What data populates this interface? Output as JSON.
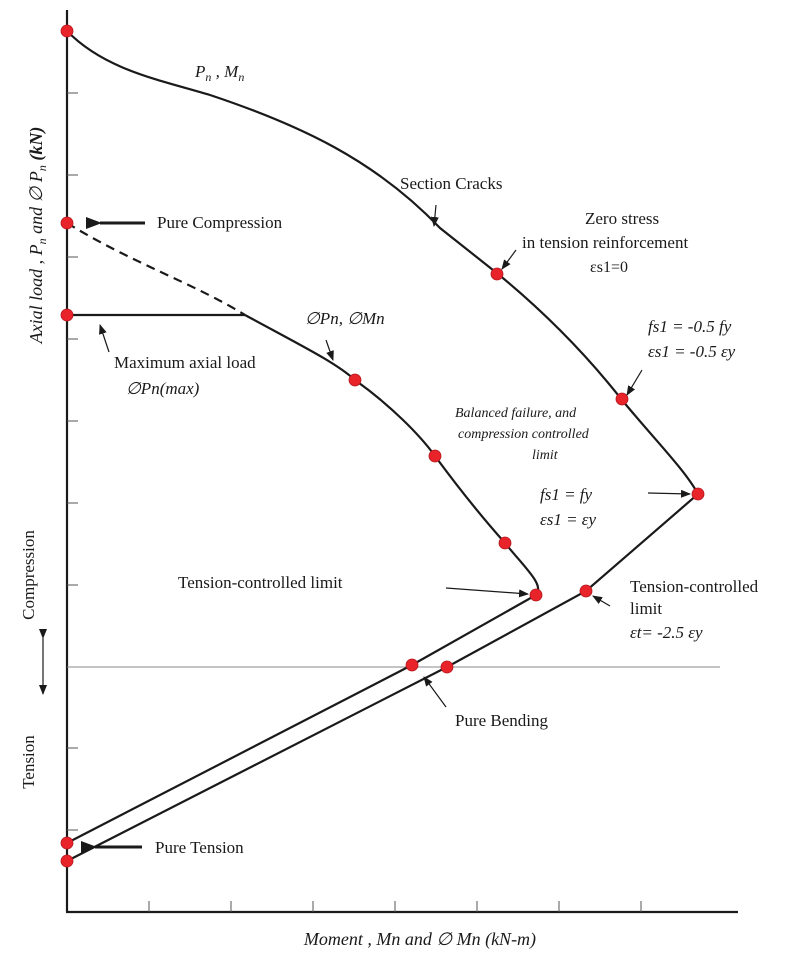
{
  "x_axis_title": "Moment , Mn and ∅ Mn  (kN-m)",
  "y_axis_title": "Axial load , Pn and ∅ Pn (kN)",
  "y_axis_title_parts": {
    "a": "Axial load , P",
    "a_sub": "n",
    "b": " and ∅ P",
    "b_sub": "n",
    "c": " (kN)"
  },
  "region_labels": {
    "compression": "Compression",
    "tension": "Tension"
  },
  "labels": {
    "nominal": {
      "p": "P",
      "p_sub": "n",
      "sep": " , M",
      "m_sub": "n"
    },
    "section_cracks": "Section Cracks",
    "zero_stress_1": "Zero stress",
    "zero_stress_2": "in tension reinforcement",
    "zero_stress_3": "εs1=0",
    "fs_half_1": "fs1 = -0.5 fy",
    "fs_half_2": "εs1 = -0.5 εy",
    "balanced_1": "Balanced failure, and",
    "balanced_2": "compression controlled",
    "balanced_3": "limit",
    "fs_yield_1": "fs1 =  fy",
    "fs_yield_2": "εs1 = εy",
    "pure_compression": "Pure Compression",
    "max_axial_1": "Maximum axial load",
    "max_axial_2": "∅Pn(max)",
    "design": "∅Pn,  ∅Mn",
    "tension_controlled_left": "Tension-controlled limit",
    "tension_controlled_right_1": "Tension-controlled",
    "tension_controlled_right_2": "limit",
    "tension_controlled_right_3": "εt= -2.5 εy",
    "pure_bending": "Pure Bending",
    "pure_tension": "Pure Tension"
  },
  "colors": {
    "point": "#e8232a",
    "line": "#1a1a1a"
  },
  "curve_points": {
    "nominal": [
      {
        "name": "pure-compression-nominal"
      },
      {
        "name": "zero-stress-point"
      },
      {
        "name": "half-yield-point"
      },
      {
        "name": "balanced-point"
      },
      {
        "name": "tension-controlled-nominal"
      },
      {
        "name": "pure-bending-nominal"
      },
      {
        "name": "pure-tension-nominal"
      }
    ],
    "design": [
      {
        "name": "pure-compression-design"
      },
      {
        "name": "max-axial-design"
      },
      {
        "name": "design-point-1"
      },
      {
        "name": "design-point-2"
      },
      {
        "name": "design-point-3"
      },
      {
        "name": "tension-controlled-design"
      },
      {
        "name": "pure-bending-design"
      },
      {
        "name": "pure-tension-design"
      }
    ]
  }
}
